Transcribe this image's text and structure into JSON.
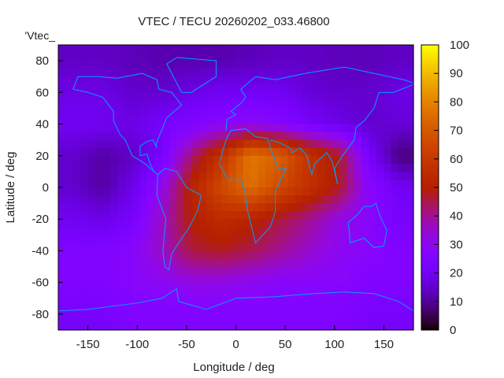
{
  "chart_data": {
    "type": "heatmap",
    "title": "VTEC / TECU 20260202_033.46800",
    "xlabel": "Longitude / deg",
    "ylabel": "Latitude / deg",
    "legend_label": "'Vtec_",
    "xlim": [
      -180,
      180
    ],
    "ylim": [
      -90,
      90
    ],
    "xticks": [
      -150,
      -100,
      -50,
      0,
      50,
      100,
      150
    ],
    "yticks": [
      -80,
      -60,
      -40,
      -20,
      0,
      20,
      40,
      60,
      80
    ],
    "colorbar": {
      "range": [
        0,
        100
      ],
      "ticks": [
        0,
        10,
        20,
        30,
        40,
        50,
        60,
        70,
        80,
        90,
        100
      ]
    },
    "grid_lon_centers": [
      -165,
      -135,
      -105,
      -75,
      -45,
      -15,
      15,
      45,
      75,
      105,
      135,
      165
    ],
    "grid_lat_centers": [
      80,
      60,
      40,
      20,
      0,
      -20,
      -40,
      -60,
      -80
    ],
    "values": [
      [
        14,
        14,
        13,
        12,
        12,
        12,
        13,
        14,
        14,
        13,
        13,
        14
      ],
      [
        18,
        18,
        15,
        15,
        18,
        20,
        20,
        20,
        16,
        15,
        15,
        18
      ],
      [
        20,
        20,
        18,
        22,
        25,
        28,
        30,
        27,
        22,
        18,
        15,
        16
      ],
      [
        15,
        11,
        14,
        22,
        42,
        58,
        78,
        72,
        58,
        48,
        22,
        8
      ],
      [
        15,
        11,
        18,
        32,
        52,
        66,
        76,
        66,
        57,
        48,
        28,
        20
      ],
      [
        20,
        18,
        22,
        36,
        50,
        55,
        52,
        46,
        40,
        32,
        28,
        22
      ],
      [
        25,
        25,
        28,
        36,
        46,
        48,
        45,
        40,
        35,
        30,
        28,
        25
      ],
      [
        25,
        25,
        28,
        30,
        32,
        32,
        30,
        28,
        28,
        28,
        25,
        25
      ],
      [
        22,
        22,
        25,
        25,
        25,
        25,
        25,
        25,
        25,
        25,
        22,
        22
      ]
    ],
    "coastline_color": "#00a0ff"
  }
}
